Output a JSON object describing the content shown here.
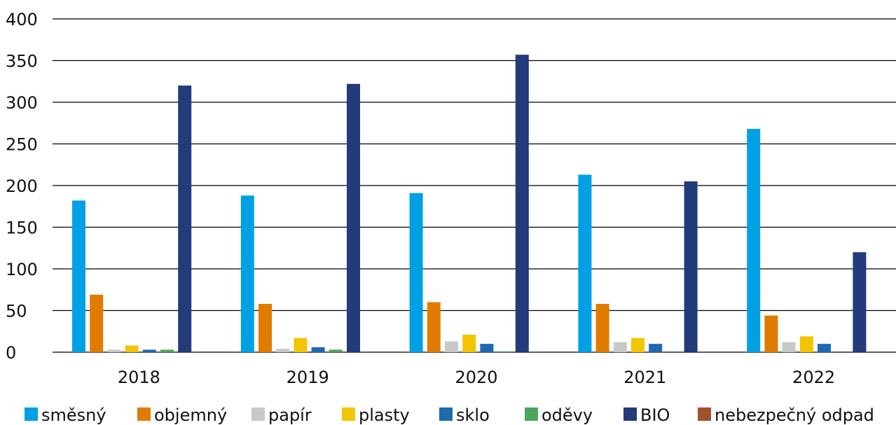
{
  "chart_data": {
    "type": "bar",
    "title": "",
    "xlabel": "",
    "ylabel": "",
    "categories": [
      "2018",
      "2019",
      "2020",
      "2021",
      "2022"
    ],
    "ylim": [
      0,
      400
    ],
    "yticks": [
      0,
      50,
      100,
      150,
      200,
      250,
      300,
      350,
      400
    ],
    "grid": true,
    "legend_position": "bottom",
    "series": [
      {
        "name": "směsný",
        "color": "#00A1E4",
        "values": [
          182,
          188,
          191,
          213,
          268
        ]
      },
      {
        "name": "objemný",
        "color": "#E07B00",
        "values": [
          69,
          58,
          60,
          58,
          44
        ]
      },
      {
        "name": "papír",
        "color": "#C8C8C8",
        "values": [
          3,
          4,
          13,
          12,
          12
        ]
      },
      {
        "name": "plasty",
        "color": "#F2C500",
        "values": [
          8,
          17,
          21,
          17,
          19
        ]
      },
      {
        "name": "sklo",
        "color": "#1F69B1",
        "values": [
          3,
          6,
          10,
          10,
          10
        ]
      },
      {
        "name": "oděvy",
        "color": "#4CA55A",
        "values": [
          3,
          3,
          1,
          0,
          0
        ]
      },
      {
        "name": "BIO",
        "color": "#233A7B",
        "values": [
          320,
          322,
          357,
          205,
          120
        ]
      },
      {
        "name": "nebezpečný odpad",
        "color": "#A0522D",
        "values": [
          0,
          0,
          0,
          0,
          0
        ]
      }
    ]
  }
}
